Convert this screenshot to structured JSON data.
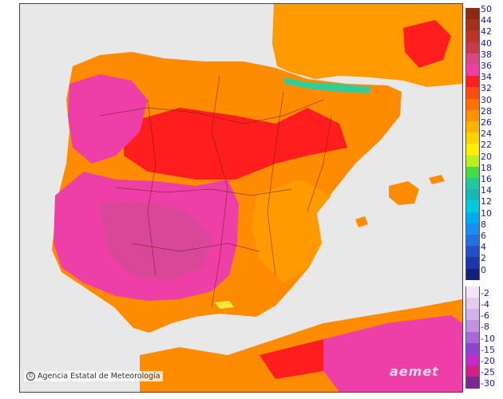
{
  "map": {
    "land_colors": {
      "t26_28": "#ffa800",
      "t28_30": "#ff8c00",
      "t30_32": "#ff6a00",
      "t32_34": "#ff1e1e",
      "t34_36": "#ee3fa6",
      "t36_38": "#d94898",
      "t22_24": "#f7e83a",
      "t10_18": "#33cc99",
      "sea": "#e8e8e8"
    }
  },
  "legend": {
    "positive": [
      {
        "label": "50",
        "color": "#8b2a10"
      },
      {
        "label": "44",
        "color": "#a33318"
      },
      {
        "label": "42",
        "color": "#b83528"
      },
      {
        "label": "40",
        "color": "#c83a4a"
      },
      {
        "label": "38",
        "color": "#d94886"
      },
      {
        "label": "36",
        "color": "#ee3fa6"
      },
      {
        "label": "34",
        "color": "#ff1e1e"
      },
      {
        "label": "32",
        "color": "#ff4a10"
      },
      {
        "label": "30",
        "color": "#ff7200"
      },
      {
        "label": "28",
        "color": "#ff9400"
      },
      {
        "label": "26",
        "color": "#ffb400"
      },
      {
        "label": "24",
        "color": "#ffd200"
      },
      {
        "label": "22",
        "color": "#ffee00"
      },
      {
        "label": "20",
        "color": "#b8f020"
      },
      {
        "label": "18",
        "color": "#44dd44"
      },
      {
        "label": "16",
        "color": "#20c8a0"
      },
      {
        "label": "14",
        "color": "#14b8b4"
      },
      {
        "label": "12",
        "color": "#00c8e0"
      },
      {
        "label": "10",
        "color": "#00aaee"
      },
      {
        "label": "8",
        "color": "#1a8ef0"
      },
      {
        "label": "6",
        "color": "#2470e0"
      },
      {
        "label": "4",
        "color": "#2150c8"
      },
      {
        "label": "2",
        "color": "#1a38a8"
      },
      {
        "label": "0",
        "color": "#12207a"
      }
    ],
    "negative": [
      {
        "label": "-2",
        "color": "#f2e6f6"
      },
      {
        "label": "-4",
        "color": "#e2cdee"
      },
      {
        "label": "-6",
        "color": "#d2b2e8"
      },
      {
        "label": "-8",
        "color": "#bf92e2"
      },
      {
        "label": "-10",
        "color": "#a66ad8"
      },
      {
        "label": "-15",
        "color": "#8e44cc"
      },
      {
        "label": "-20",
        "color": "#c32cc8"
      },
      {
        "label": "-25",
        "color": "#d0208a"
      },
      {
        "label": "-30",
        "color": "#7a2a8e"
      }
    ]
  },
  "credit": {
    "copyright": "©",
    "text": "Agencia Estatal de Meteorología"
  },
  "logo": {
    "text": "aemet"
  }
}
